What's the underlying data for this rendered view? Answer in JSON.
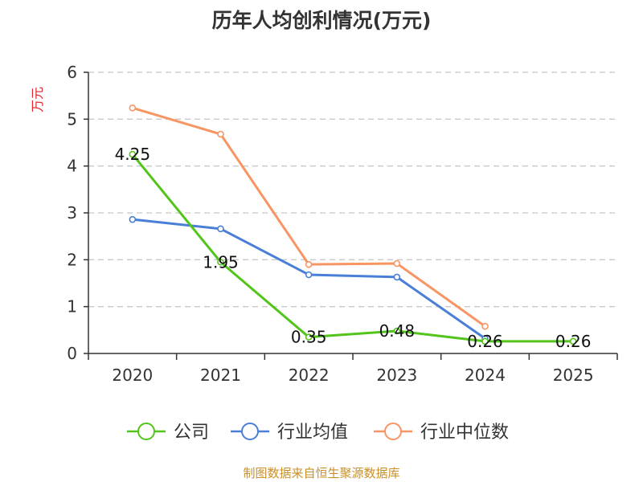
{
  "chart_data": {
    "type": "line",
    "title": "历年人均创利情况(万元)",
    "ylabel": "万元",
    "xlabel": "",
    "categories": [
      "2020",
      "2021",
      "2022",
      "2023",
      "2024",
      "2025"
    ],
    "ylim": [
      0,
      6
    ],
    "yticks": [
      0,
      1,
      2,
      3,
      4,
      5,
      6
    ],
    "grid": true,
    "legend_position": "bottom",
    "series": [
      {
        "name": "公司",
        "color": "#52c41a",
        "values": [
          4.25,
          1.95,
          0.35,
          0.48,
          0.26,
          0.26
        ],
        "labels": [
          "4.25",
          "1.95",
          "0.35",
          "0.48",
          "0.26",
          "0.26"
        ]
      },
      {
        "name": "行业均值",
        "color": "#4a7fd8",
        "values": [
          2.86,
          2.66,
          1.68,
          1.63,
          0.32,
          null
        ]
      },
      {
        "name": "行业中位数",
        "color": "#f79563",
        "values": [
          5.24,
          4.68,
          1.9,
          1.92,
          0.58,
          null
        ]
      }
    ]
  },
  "footer": "制图数据来自恒生聚源数据库"
}
